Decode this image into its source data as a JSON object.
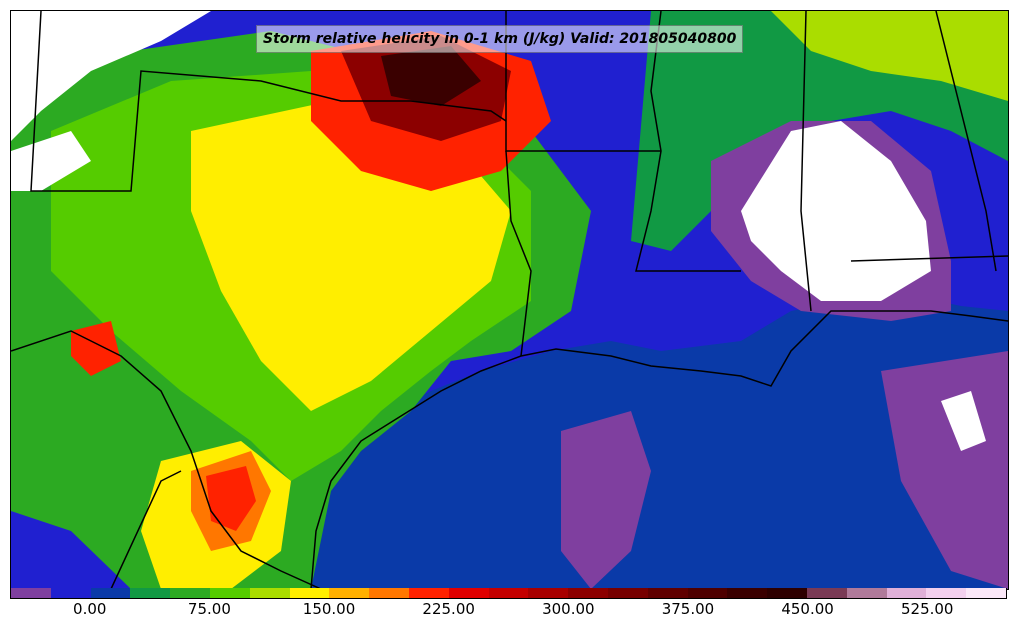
{
  "title": "Storm relative helicity in 0-1 km (J/kg) Valid: 201805040800",
  "colorbar": {
    "colors": [
      "#7f3f9f",
      "#2020d0",
      "#0a3aa8",
      "#119944",
      "#2caa22",
      "#55cc00",
      "#aadd00",
      "#ffee00",
      "#ffb000",
      "#ff7700",
      "#ff2200",
      "#e00000",
      "#c40000",
      "#a80000",
      "#8c0000",
      "#770000",
      "#600000",
      "#4e0000",
      "#3a0000",
      "#2d0000",
      "#7a3a55",
      "#b07a9a",
      "#e0b0d8",
      "#f3d0ee",
      "#fbe8f8"
    ],
    "ticks": [
      "0.00",
      "75.00",
      "150.00",
      "225.00",
      "300.00",
      "375.00",
      "450.00",
      "525.00"
    ]
  },
  "palette": {
    "gulf": "#0a3aa8",
    "deep_blue": "#2020d0",
    "purple": "#7f3f9f",
    "white": "#ffffff",
    "green": "#119944",
    "light_green": "#55cc00",
    "yellow": "#ffee00",
    "orange": "#ff7700",
    "red": "#ff2200",
    "dark_red": "#8c0000",
    "maroon": "#3a0000",
    "border": "#000000"
  }
}
